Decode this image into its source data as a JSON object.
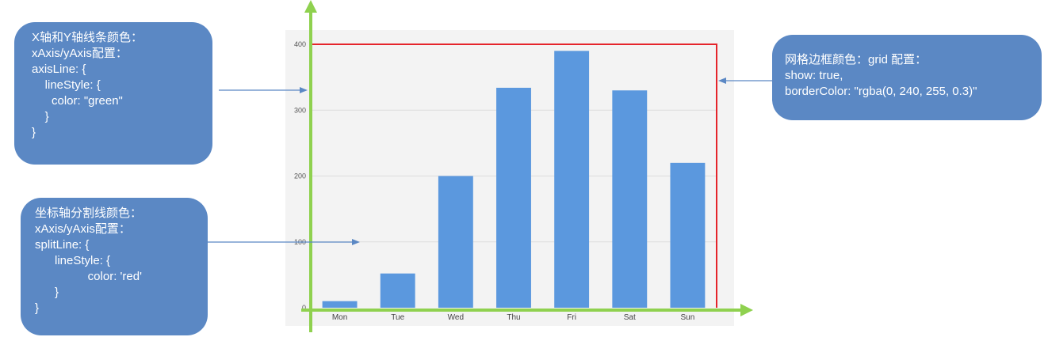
{
  "notes": {
    "axis_line": {
      "lines": [
        "X轴和Y轴线条颜色：",
        "xAxis/yAxis配置：",
        "axisLine: {",
        "    lineStyle: {",
        "      color: \"green\"",
        "    }",
        "}"
      ]
    },
    "split_line": {
      "lines": [
        "坐标轴分割线颜色：",
        "xAxis/yAxis配置：",
        "splitLine: {",
        "      lineStyle: {",
        "                color: 'red'",
        "      }",
        "}"
      ]
    },
    "grid_border": {
      "lines": [
        "网格边框颜色：grid 配置：",
        "show: true,",
        "borderColor: \"rgba(0, 240, 255, 0.3)\""
      ]
    }
  },
  "colors": {
    "note_bg": "#5b88c4",
    "bar": "#5b98de",
    "axis_line": "#8fd14f",
    "split_line": "#dddddd",
    "grid_border": "#e5242b",
    "grid_bg": "#f3f3f3",
    "pointer": "#5b88c4"
  },
  "chart_data": {
    "type": "bar",
    "categories": [
      "Mon",
      "Tue",
      "Wed",
      "Thu",
      "Fri",
      "Sat",
      "Sun"
    ],
    "values": [
      10,
      52,
      200,
      334,
      390,
      330,
      220
    ],
    "ylim": [
      0,
      400
    ],
    "yticks": [
      0,
      100,
      200,
      300,
      400
    ],
    "grid": true
  }
}
